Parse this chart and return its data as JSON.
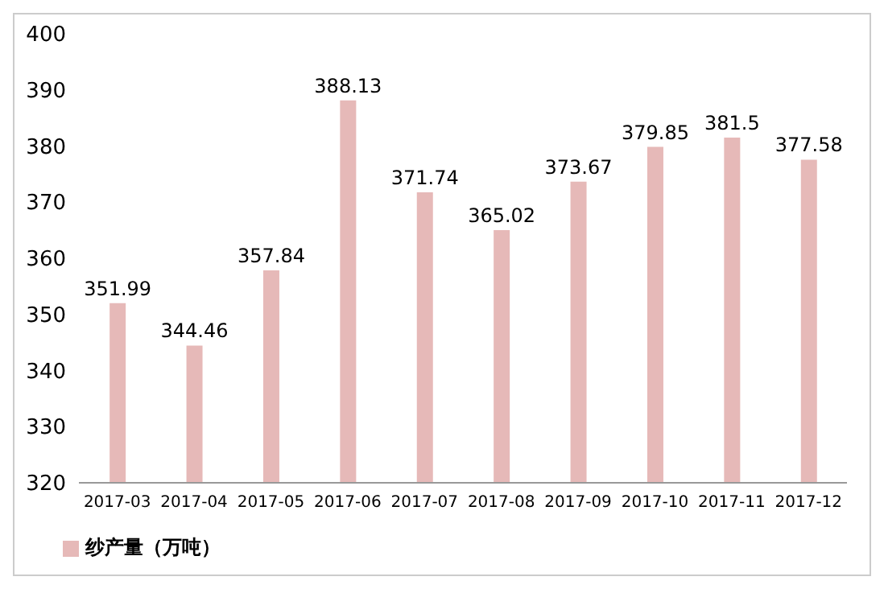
{
  "chart_data": {
    "type": "bar",
    "categories": [
      "2017-03",
      "2017-04",
      "2017-05",
      "2017-06",
      "2017-07",
      "2017-08",
      "2017-09",
      "2017-10",
      "2017-11",
      "2017-12"
    ],
    "series": [
      {
        "name": "纱产量（万吨）",
        "color": "#e6b9b8",
        "values": [
          351.99,
          344.46,
          357.84,
          388.13,
          371.74,
          365.02,
          373.67,
          379.85,
          381.5,
          377.58
        ]
      }
    ],
    "ylim": [
      320,
      400
    ],
    "yticks": [
      320,
      330,
      340,
      350,
      360,
      370,
      380,
      390,
      400
    ],
    "grid": false,
    "legend": "bottom left",
    "data_labels": true
  }
}
